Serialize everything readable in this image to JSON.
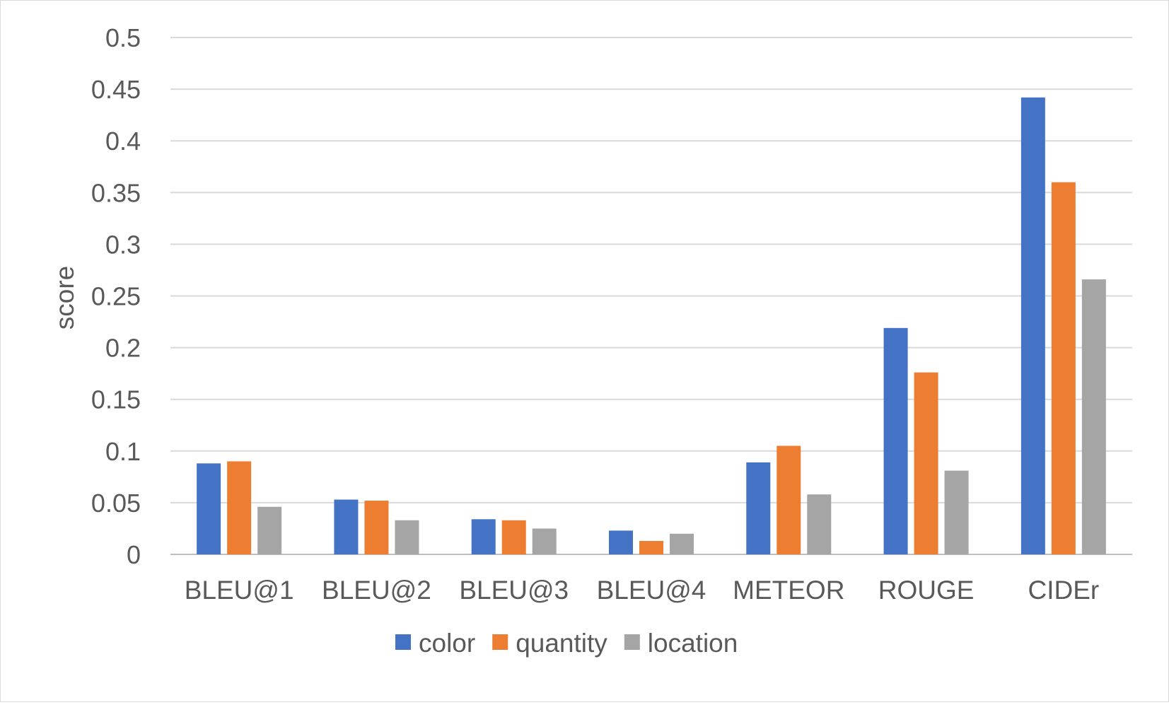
{
  "chart_data": {
    "type": "bar",
    "title": "",
    "xlabel": "",
    "ylabel": "score",
    "ylim": [
      0,
      0.5
    ],
    "yticks": [
      "0",
      "0.05",
      "0.1",
      "0.15",
      "0.2",
      "0.25",
      "0.3",
      "0.35",
      "0.4",
      "0.45",
      "0.5"
    ],
    "grid": true,
    "legend_position": "bottom",
    "categories": [
      "BLEU@1",
      "BLEU@2",
      "BLEU@3",
      "BLEU@4",
      "METEOR",
      "ROUGE",
      "CIDEr"
    ],
    "series": [
      {
        "name": "color",
        "color": "#4472C4",
        "values": [
          0.088,
          0.053,
          0.034,
          0.023,
          0.089,
          0.219,
          0.442
        ]
      },
      {
        "name": "quantity",
        "color": "#ED7D31",
        "values": [
          0.09,
          0.052,
          0.033,
          0.013,
          0.105,
          0.176,
          0.36
        ]
      },
      {
        "name": "location",
        "color": "#A5A5A5",
        "values": [
          0.046,
          0.033,
          0.025,
          0.02,
          0.058,
          0.081,
          0.266
        ]
      }
    ]
  }
}
